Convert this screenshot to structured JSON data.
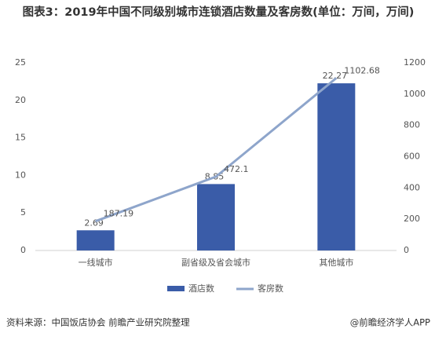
{
  "chart_data": {
    "type": "bar_line",
    "title": "图表3：2019年中国不同级别城市连锁酒店数量及客房数(单位：万间，万间)",
    "categories": [
      "一线城市",
      "副省级及省会城市",
      "其他城市"
    ],
    "series": [
      {
        "name": "酒店数",
        "color": "#3a5ca8",
        "type": "bar",
        "values": [
          2.69,
          8.85,
          22.27
        ]
      },
      {
        "name": "客房数",
        "color": "#8ea5cb",
        "type": "line",
        "axis": "y2",
        "values": [
          187.19,
          472.1,
          1102.68
        ]
      }
    ],
    "ylim": [
      0,
      25
    ],
    "yticks": [
      0,
      5,
      10,
      15,
      20,
      25
    ],
    "y2lim": [
      0,
      1200
    ],
    "y2ticks": [
      0,
      200,
      400,
      600,
      800,
      1000,
      1200
    ],
    "legend": "bottom",
    "source": "资料来源：中国饭店协会 前瞻产业研究院整理",
    "credit": "@前瞻经济学人APP"
  }
}
